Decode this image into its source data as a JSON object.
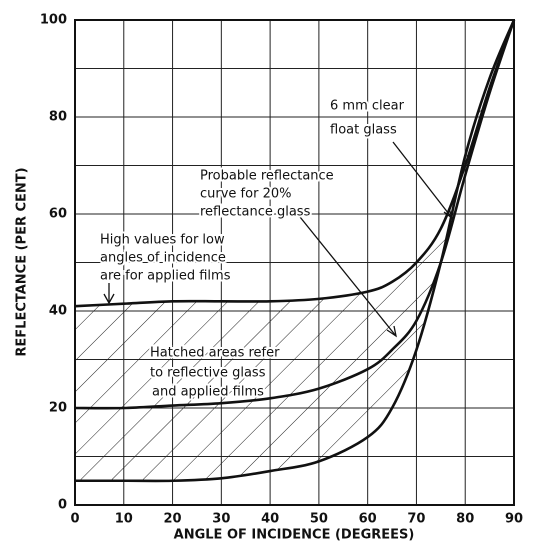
{
  "chart_data": {
    "type": "line",
    "xlabel": "ANGLE OF INCIDENCE (DEGREES)",
    "ylabel": "REFLECTANCE (PER CENT)",
    "x": [
      0,
      10,
      20,
      30,
      40,
      50,
      60,
      65,
      70,
      75,
      80,
      85,
      90
    ],
    "series": [
      {
        "color": "#111111",
        "values": [
          41,
          41.5,
          42,
          42,
          42,
          42.5,
          44,
          46,
          50,
          57,
          70,
          86,
          100
        ]
      },
      {
        "color": "#111111",
        "values": [
          20,
          20,
          20.5,
          21,
          22,
          24,
          28,
          32,
          38,
          50,
          68,
          85,
          100
        ]
      },
      {
        "color": "#111111",
        "values": [
          5,
          5,
          5,
          5.5,
          7,
          9,
          14,
          20,
          32,
          50,
          72,
          88,
          100
        ]
      }
    ],
    "hatched_between": [
      0,
      2
    ],
    "xlim": [
      0,
      90
    ],
    "xticks": [
      0,
      10,
      20,
      30,
      40,
      50,
      60,
      70,
      80,
      90
    ],
    "ylim": [
      0,
      100
    ],
    "yticks": [
      0,
      20,
      40,
      60,
      80,
      100
    ],
    "y_minor_grid": [
      10,
      30,
      50,
      70,
      90
    ],
    "grid": true,
    "annotations": [
      "6 mm clear",
      "float glass",
      "Probable reflectance",
      "curve for 20%",
      "reflectance glass",
      "High values for low",
      "angles of incidence",
      "are for applied films",
      "Hatched areas refer",
      "to reflective glass",
      "and applied films"
    ]
  }
}
